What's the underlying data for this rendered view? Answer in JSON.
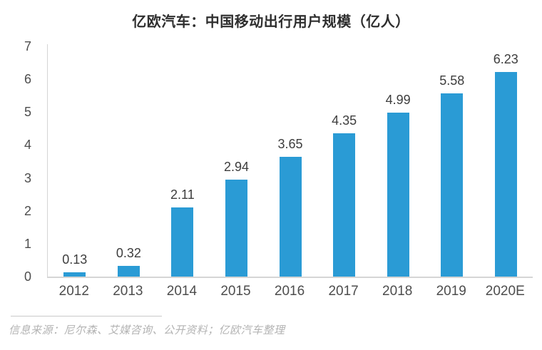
{
  "title": "亿欧汽车：中国移动出行用户规模（亿人）",
  "source_note": "信息来源：尼尔森、艾媒咨询、公开资料；亿欧汽车整理",
  "colors": {
    "bar": "#2a9bd5",
    "title": "#2e2e2e",
    "value_label": "#3d3d3d",
    "axis_label": "#4d4d4d",
    "axis_line": "#d5d5d5",
    "source": "#b3b3b3"
  },
  "chart_data": {
    "type": "bar",
    "title": "亿欧汽车：中国移动出行用户规模（亿人）",
    "categories": [
      "2012",
      "2013",
      "2014",
      "2015",
      "2016",
      "2017",
      "2018",
      "2019",
      "2020E"
    ],
    "values": [
      0.13,
      0.32,
      2.11,
      2.94,
      3.65,
      4.35,
      4.99,
      5.58,
      6.23
    ],
    "value_labels": [
      "0.13",
      "0.32",
      "2.11",
      "2.94",
      "3.65",
      "4.35",
      "4.99",
      "5.58",
      "6.23"
    ],
    "xlabel": "",
    "ylabel": "",
    "ylim": [
      0,
      7
    ],
    "yticks": [
      0,
      1,
      2,
      3,
      4,
      5,
      6,
      7
    ],
    "grid": false,
    "legend": "none",
    "bar_color": "#2a9bd5"
  }
}
